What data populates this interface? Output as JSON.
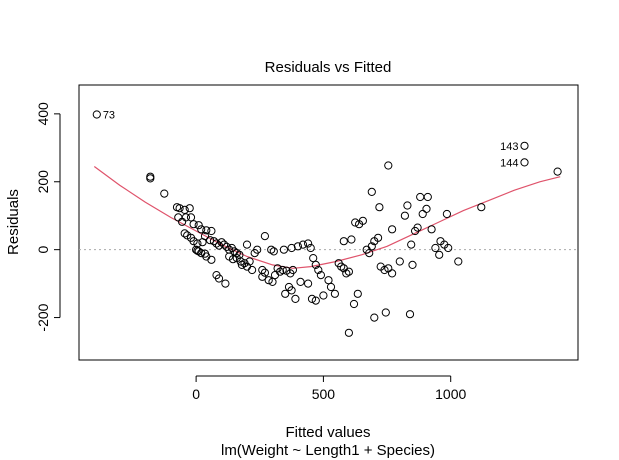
{
  "chart_data": {
    "type": "scatter",
    "title": "Residuals vs Fitted",
    "xlabel": "Fitted values",
    "subtitle": "lm(Weight ~ Length1 + Species)",
    "ylabel": "Residuals",
    "xlim": [
      -460,
      1500
    ],
    "ylim": [
      -325,
      485
    ],
    "xticks": [
      0,
      500,
      1000
    ],
    "yticks": [
      -200,
      0,
      200,
      400
    ],
    "xtick_labels": [
      "0",
      "500",
      "1000"
    ],
    "ytick_labels": [
      "-200",
      "0",
      "200",
      "400"
    ],
    "grid": false,
    "colors": {
      "points": "#000000",
      "smooth": "#df536b",
      "reference": "#aaaaaa"
    },
    "labeled_points": [
      {
        "label": "73",
        "x": -390,
        "y": 398
      },
      {
        "label": "143",
        "x": 1290,
        "y": 306
      },
      {
        "label": "144",
        "x": 1290,
        "y": 257
      }
    ],
    "points": [
      [
        -390,
        398
      ],
      [
        1290,
        306
      ],
      [
        1290,
        257
      ],
      [
        1420,
        230
      ],
      [
        -180,
        215
      ],
      [
        -180,
        210
      ],
      [
        -125,
        165
      ],
      [
        -75,
        125
      ],
      [
        -65,
        122
      ],
      [
        -45,
        117
      ],
      [
        -25,
        122
      ],
      [
        -70,
        95
      ],
      [
        -40,
        95
      ],
      [
        -20,
        95
      ],
      [
        -55,
        82
      ],
      [
        -10,
        75
      ],
      [
        10,
        72
      ],
      [
        20,
        60
      ],
      [
        40,
        57
      ],
      [
        60,
        55
      ],
      [
        -45,
        48
      ],
      [
        -35,
        42
      ],
      [
        -20,
        35
      ],
      [
        -10,
        25
      ],
      [
        5,
        18
      ],
      [
        25,
        22
      ],
      [
        35,
        40
      ],
      [
        55,
        28
      ],
      [
        70,
        25
      ],
      [
        0,
        0
      ],
      [
        10,
        -5
      ],
      [
        20,
        -10
      ],
      [
        5,
        -3
      ],
      [
        40,
        -20
      ],
      [
        60,
        -30
      ],
      [
        35,
        -12
      ],
      [
        80,
        18
      ],
      [
        90,
        12
      ],
      [
        100,
        22
      ],
      [
        110,
        15
      ],
      [
        120,
        8
      ],
      [
        130,
        0
      ],
      [
        140,
        5
      ],
      [
        150,
        -5
      ],
      [
        160,
        -10
      ],
      [
        170,
        -15
      ],
      [
        130,
        -20
      ],
      [
        145,
        -28
      ],
      [
        160,
        -25
      ],
      [
        175,
        -35
      ],
      [
        190,
        -40
      ],
      [
        200,
        -50
      ],
      [
        210,
        -35
      ],
      [
        180,
        -45
      ],
      [
        220,
        -60
      ],
      [
        200,
        15
      ],
      [
        230,
        -10
      ],
      [
        240,
        0
      ],
      [
        260,
        -60
      ],
      [
        270,
        -68
      ],
      [
        285,
        -90
      ],
      [
        260,
        -80
      ],
      [
        300,
        -95
      ],
      [
        310,
        -75
      ],
      [
        80,
        -75
      ],
      [
        90,
        -85
      ],
      [
        115,
        -100
      ],
      [
        270,
        40
      ],
      [
        295,
        0
      ],
      [
        305,
        -5
      ],
      [
        320,
        -55
      ],
      [
        330,
        -65
      ],
      [
        340,
        -60
      ],
      [
        355,
        -62
      ],
      [
        370,
        -70
      ],
      [
        380,
        -60
      ],
      [
        350,
        -130
      ],
      [
        365,
        -110
      ],
      [
        375,
        -120
      ],
      [
        390,
        -145
      ],
      [
        410,
        -95
      ],
      [
        345,
        0
      ],
      [
        375,
        5
      ],
      [
        400,
        10
      ],
      [
        420,
        15
      ],
      [
        440,
        18
      ],
      [
        450,
        5
      ],
      [
        460,
        -25
      ],
      [
        470,
        -45
      ],
      [
        480,
        -60
      ],
      [
        490,
        -75
      ],
      [
        440,
        -100
      ],
      [
        455,
        -145
      ],
      [
        470,
        -150
      ],
      [
        500,
        -135
      ],
      [
        520,
        -90
      ],
      [
        530,
        -110
      ],
      [
        545,
        -130
      ],
      [
        560,
        -40
      ],
      [
        570,
        -50
      ],
      [
        580,
        -55
      ],
      [
        590,
        -70
      ],
      [
        600,
        -65
      ],
      [
        600,
        -245
      ],
      [
        620,
        -160
      ],
      [
        635,
        -130
      ],
      [
        580,
        25
      ],
      [
        610,
        30
      ],
      [
        625,
        80
      ],
      [
        640,
        75
      ],
      [
        655,
        85
      ],
      [
        670,
        0
      ],
      [
        680,
        -10
      ],
      [
        690,
        10
      ],
      [
        700,
        25
      ],
      [
        715,
        35
      ],
      [
        725,
        -50
      ],
      [
        740,
        -60
      ],
      [
        755,
        -55
      ],
      [
        770,
        -70
      ],
      [
        690,
        170
      ],
      [
        720,
        125
      ],
      [
        755,
        248
      ],
      [
        770,
        60
      ],
      [
        700,
        -200
      ],
      [
        745,
        -185
      ],
      [
        800,
        -35
      ],
      [
        820,
        100
      ],
      [
        830,
        130
      ],
      [
        845,
        15
      ],
      [
        860,
        55
      ],
      [
        870,
        65
      ],
      [
        880,
        155
      ],
      [
        840,
        -190
      ],
      [
        850,
        -45
      ],
      [
        890,
        105
      ],
      [
        905,
        120
      ],
      [
        910,
        155
      ],
      [
        925,
        60
      ],
      [
        940,
        5
      ],
      [
        955,
        -15
      ],
      [
        960,
        25
      ],
      [
        975,
        15
      ],
      [
        985,
        105
      ],
      [
        990,
        5
      ],
      [
        1030,
        -35
      ],
      [
        1120,
        125
      ]
    ],
    "smooth_curve": [
      [
        -400,
        245
      ],
      [
        -300,
        190
      ],
      [
        -200,
        140
      ],
      [
        -100,
        95
      ],
      [
        0,
        55
      ],
      [
        100,
        15
      ],
      [
        200,
        -20
      ],
      [
        300,
        -45
      ],
      [
        380,
        -55
      ],
      [
        450,
        -50
      ],
      [
        550,
        -35
      ],
      [
        650,
        -15
      ],
      [
        750,
        10
      ],
      [
        850,
        45
      ],
      [
        950,
        80
      ],
      [
        1050,
        115
      ],
      [
        1150,
        145
      ],
      [
        1250,
        175
      ],
      [
        1350,
        200
      ],
      [
        1430,
        215
      ]
    ]
  }
}
